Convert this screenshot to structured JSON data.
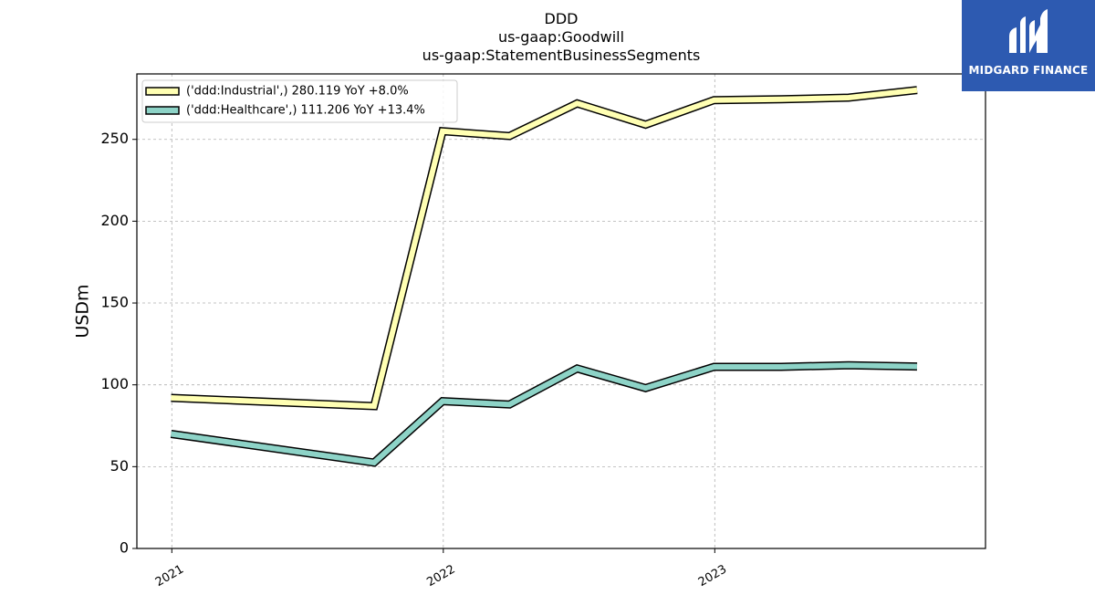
{
  "chart_data": {
    "type": "line",
    "title_lines": [
      "DDD",
      "us-gaap:Goodwill",
      "us-gaap:StatementBusinessSegments"
    ],
    "ylabel": "USDm",
    "ylim": [
      0,
      290
    ],
    "yticks": [
      0,
      50,
      100,
      150,
      200,
      250
    ],
    "xlim": [
      "2020-11-15",
      "2023-12-31"
    ],
    "xticks": [
      {
        "label": "2021",
        "date": "2021-01-01"
      },
      {
        "label": "2022",
        "date": "2022-01-01"
      },
      {
        "label": "2023",
        "date": "2023-01-01"
      }
    ],
    "grid": true,
    "legend_position": "top-left",
    "series": [
      {
        "name": "('ddd:Industrial',) 280.119 YoY +8.0%",
        "color": "#ffffb3",
        "points": [
          {
            "x": "2020-12-31",
            "y": 92
          },
          {
            "x": "2021-09-30",
            "y": 87
          },
          {
            "x": "2021-12-31",
            "y": 255
          },
          {
            "x": "2022-03-31",
            "y": 252
          },
          {
            "x": "2022-06-30",
            "y": 272
          },
          {
            "x": "2022-09-30",
            "y": 259
          },
          {
            "x": "2022-12-31",
            "y": 274
          },
          {
            "x": "2023-03-31",
            "y": 274.5
          },
          {
            "x": "2023-06-30",
            "y": 275.5
          },
          {
            "x": "2023-09-30",
            "y": 280.119
          }
        ]
      },
      {
        "name": "('ddd:Healthcare',) 111.206 YoY +13.4%",
        "color": "#8dd3c7",
        "points": [
          {
            "x": "2020-12-31",
            "y": 70
          },
          {
            "x": "2021-09-30",
            "y": 52.5
          },
          {
            "x": "2021-12-31",
            "y": 90
          },
          {
            "x": "2022-03-31",
            "y": 88
          },
          {
            "x": "2022-06-30",
            "y": 110
          },
          {
            "x": "2022-09-30",
            "y": 98
          },
          {
            "x": "2022-12-31",
            "y": 111
          },
          {
            "x": "2023-03-31",
            "y": 111
          },
          {
            "x": "2023-06-30",
            "y": 112
          },
          {
            "x": "2023-09-30",
            "y": 111.206
          }
        ]
      }
    ]
  },
  "logo": {
    "text": "MIDGARD FINANCE",
    "background": "#2d5ab1"
  }
}
